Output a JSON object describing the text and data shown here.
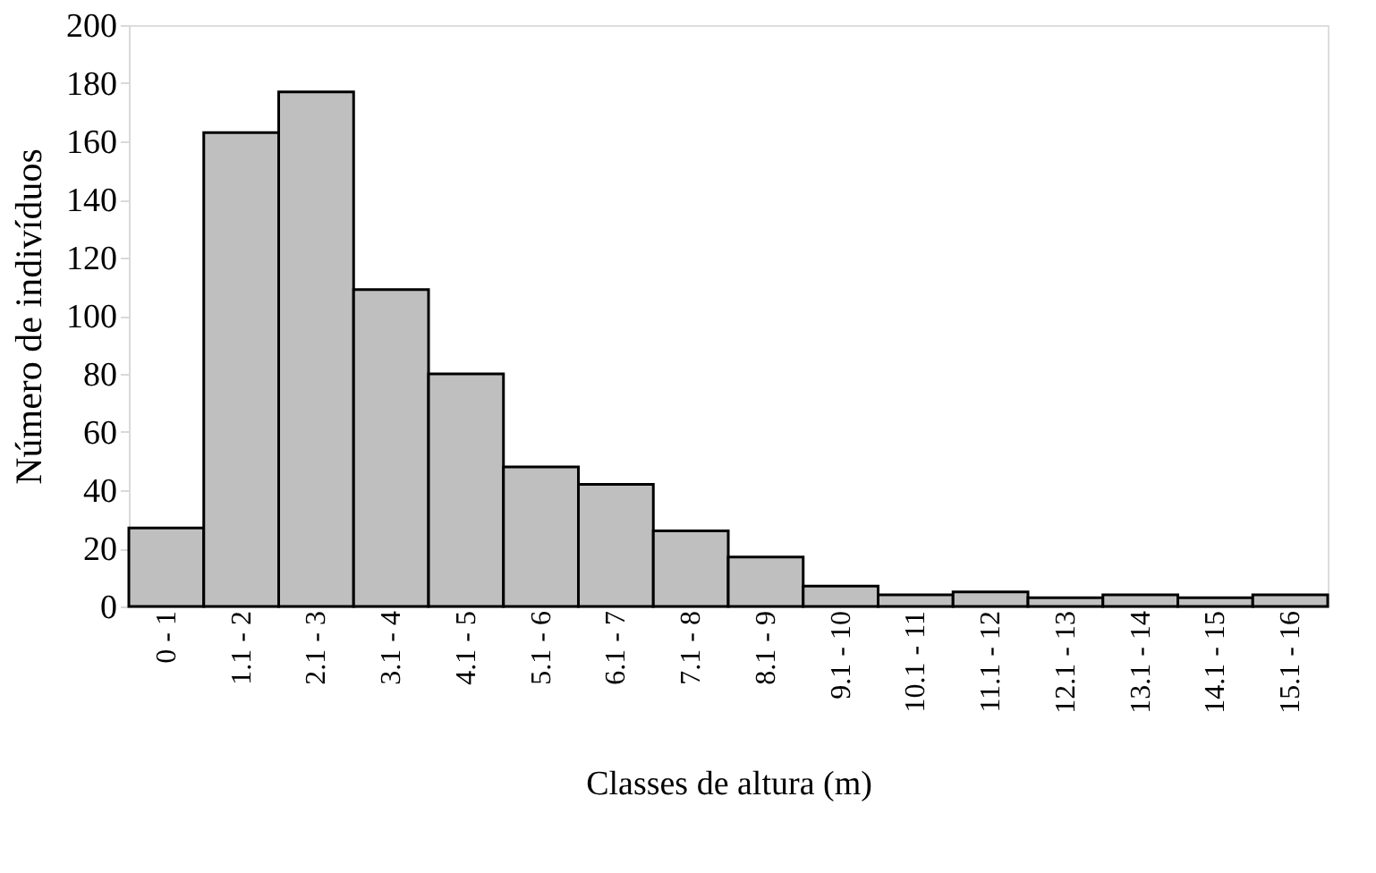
{
  "chart_data": {
    "type": "bar",
    "xlabel": "Classes de altura (m)",
    "ylabel": "Número de indivíduos",
    "categories": [
      "0 - 1",
      "1.1 - 2",
      "2.1 - 3",
      "3.1 - 4",
      "4.1 - 5",
      "5.1 - 6",
      "6.1 - 7",
      "7.1 - 8",
      "8.1 - 9",
      "9.1 - 10",
      "10.1 - 11",
      "11.1 - 12",
      "12.1 - 13",
      "13.1 - 14",
      "14.1 - 15",
      "15.1 - 16"
    ],
    "values": [
      27,
      163,
      177,
      109,
      80,
      48,
      42,
      26,
      17,
      7,
      4,
      5,
      3,
      4,
      3,
      4
    ],
    "color": "#bfbfbf",
    "ylim": [
      0,
      200
    ],
    "yticks": [
      0,
      20,
      40,
      60,
      80,
      100,
      120,
      140,
      160,
      180,
      200
    ],
    "grid": false
  }
}
